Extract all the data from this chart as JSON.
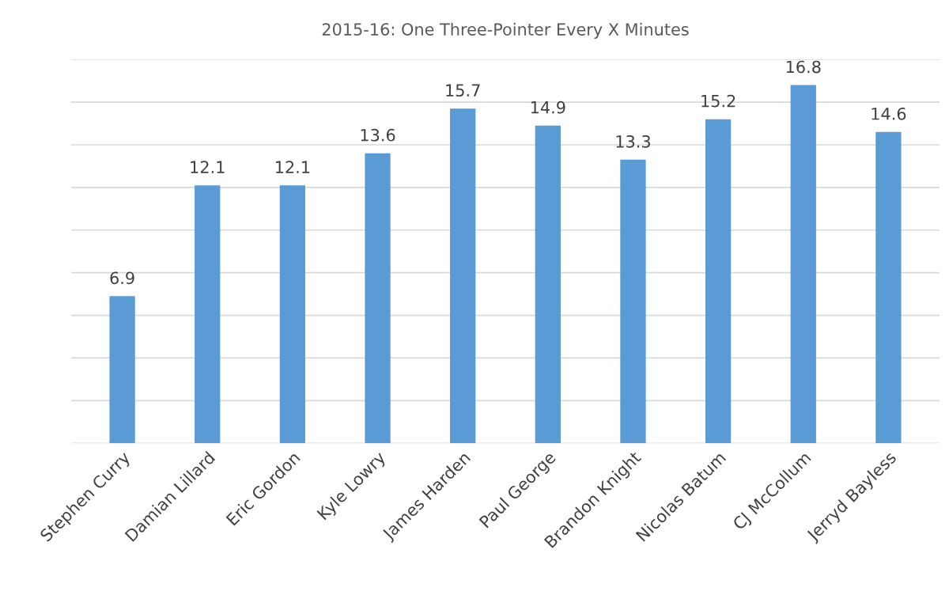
{
  "chart_data": {
    "type": "bar",
    "title": "2015-16: One Three-Pointer Every X Minutes",
    "categories": [
      "Stephen Curry",
      "Damian Lillard",
      "Eric Gordon",
      "Kyle Lowry",
      "James Harden",
      "Paul George",
      "Brandon Knight",
      "Nicolas Batum",
      "CJ McCollum",
      "Jerryd Bayless"
    ],
    "values": [
      6.9,
      12.1,
      12.1,
      13.6,
      15.7,
      14.9,
      13.3,
      15.2,
      16.8,
      14.6
    ],
    "color": "#5b9bd5",
    "ylim": [
      0,
      18
    ],
    "yticks": [
      {
        "value": 0,
        "label": null
      },
      {
        "value": 2,
        "label": null
      },
      {
        "value": 4,
        "label": null
      },
      {
        "value": 6,
        "label": null
      },
      {
        "value": 8,
        "label": null
      },
      {
        "value": 10,
        "label": null
      },
      {
        "value": 12,
        "label": null
      },
      {
        "value": 14,
        "label": null
      },
      {
        "value": 16,
        "label": null
      },
      {
        "value": 18,
        "label": null
      }
    ],
    "grid": "y",
    "data_labels": true,
    "tick_labels": "x"
  }
}
